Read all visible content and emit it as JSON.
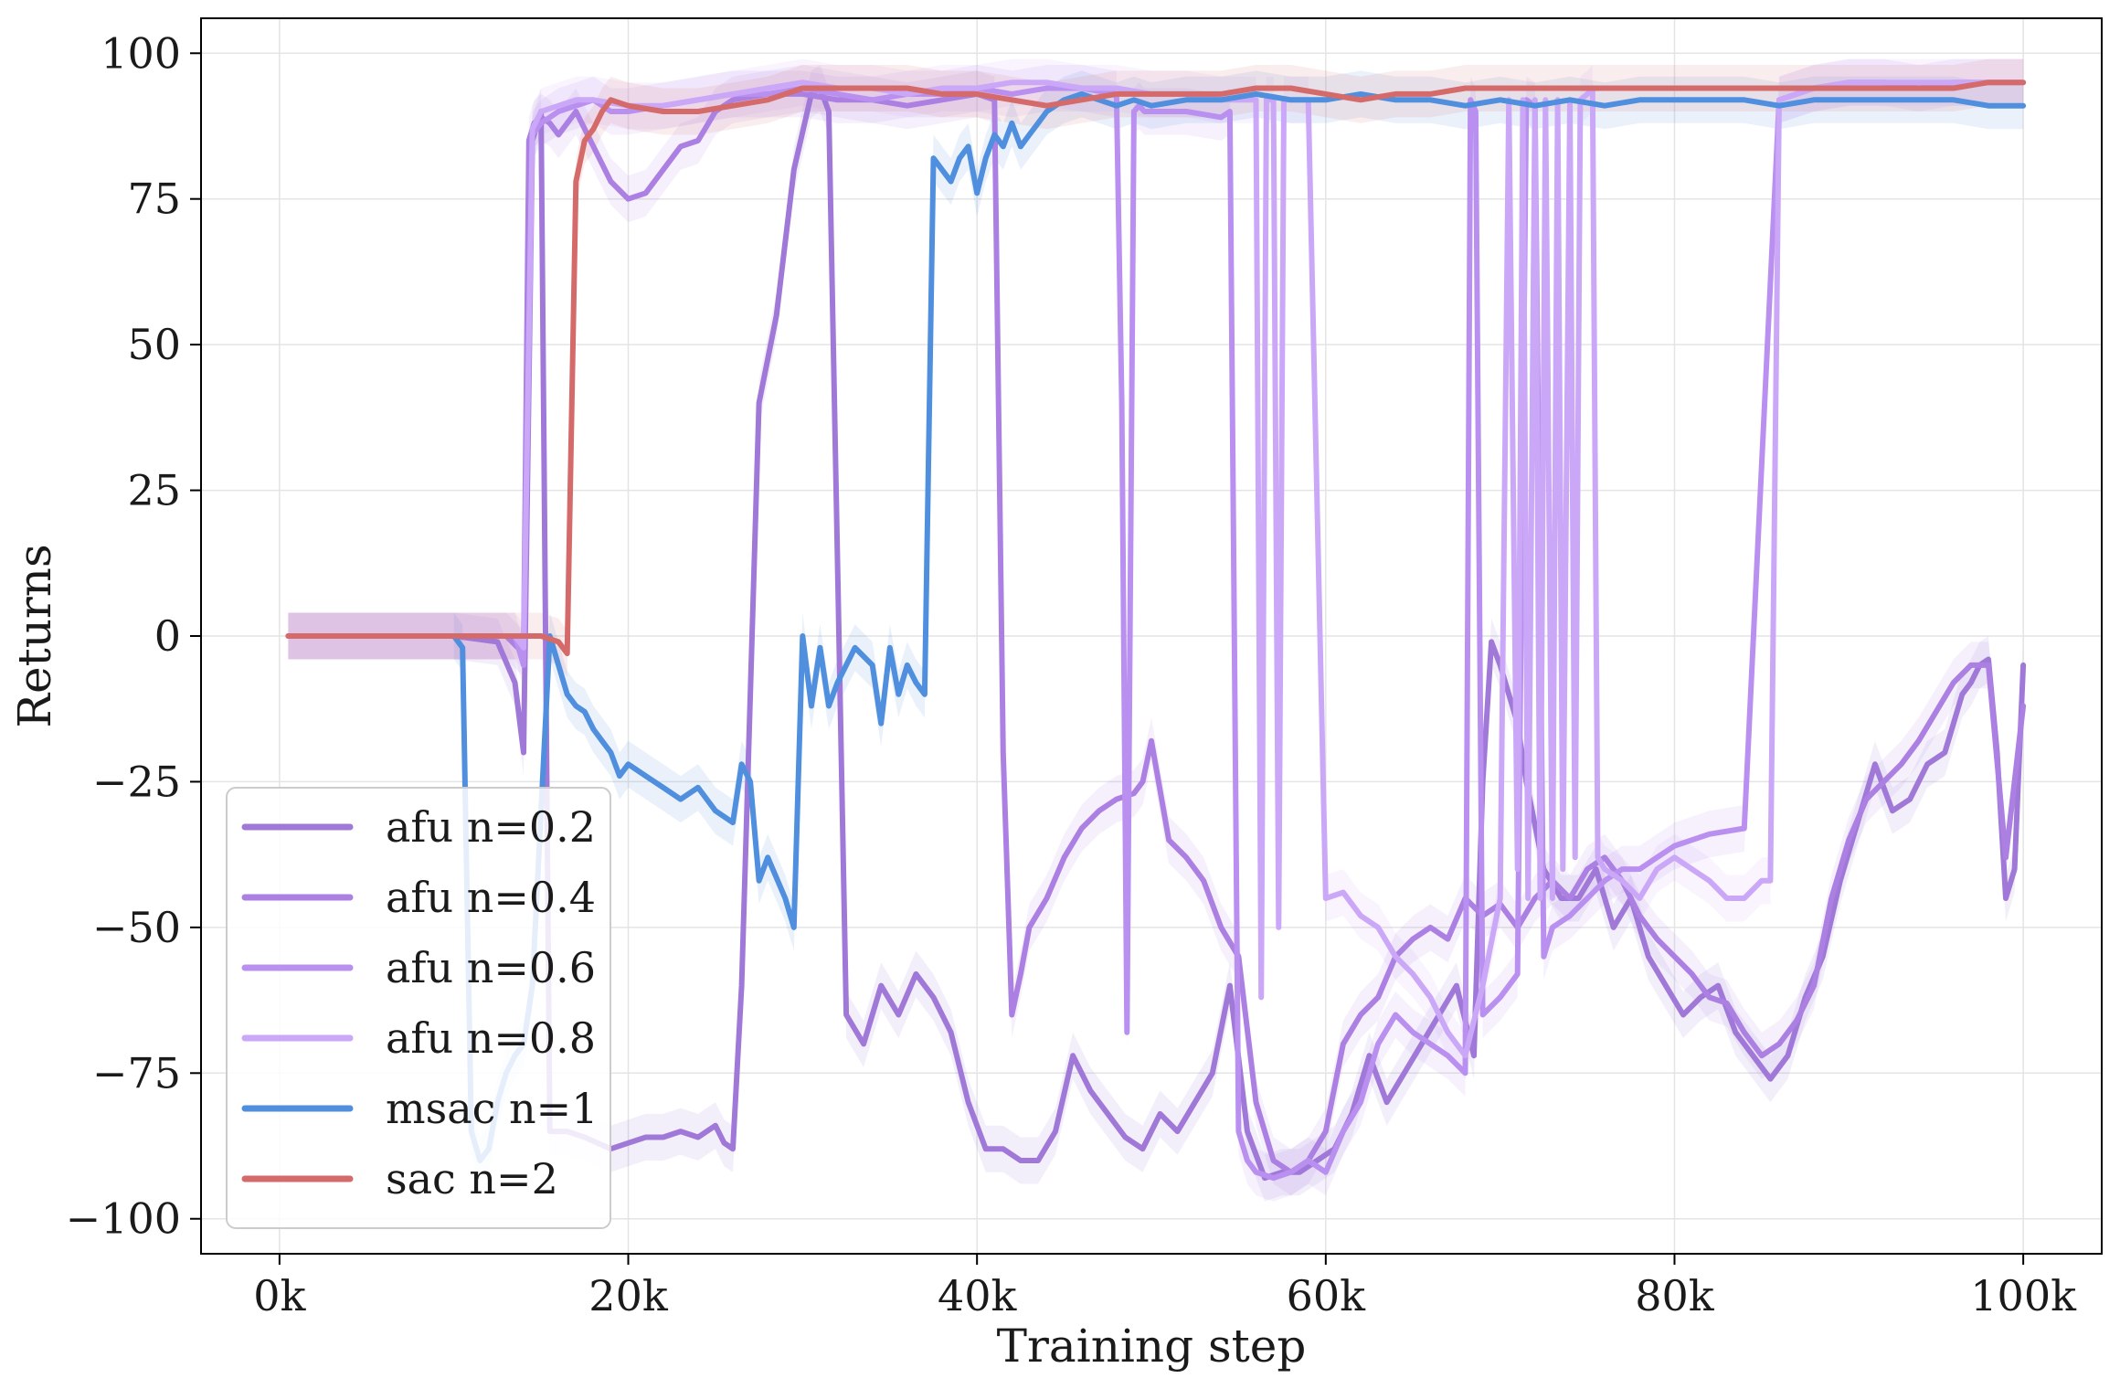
{
  "chart_data": {
    "type": "line",
    "title": "",
    "xlabel": "Training step",
    "ylabel": "Returns",
    "xlim": [
      -4500,
      104500
    ],
    "ylim": [
      -106,
      106
    ],
    "xticks": [
      {
        "value": 0,
        "label": "0k"
      },
      {
        "value": 20000,
        "label": "20k"
      },
      {
        "value": 40000,
        "label": "40k"
      },
      {
        "value": 60000,
        "label": "60k"
      },
      {
        "value": 80000,
        "label": "80k"
      },
      {
        "value": 100000,
        "label": "100k"
      }
    ],
    "yticks": [
      {
        "value": 100,
        "label": "100"
      },
      {
        "value": 75,
        "label": "75"
      },
      {
        "value": 50,
        "label": "50"
      },
      {
        "value": 25,
        "label": "25"
      },
      {
        "value": 0,
        "label": "0"
      },
      {
        "value": -25,
        "label": "−25"
      },
      {
        "value": -50,
        "label": "−50"
      },
      {
        "value": -75,
        "label": "−75"
      },
      {
        "value": -100,
        "label": "−100"
      }
    ],
    "grid": true,
    "legend_position": "lower-left",
    "series": [
      {
        "name": "afu n=0.2",
        "color": "#a078d8",
        "x": [
          500,
          10000,
          12500,
          13500,
          14000,
          14500,
          15000,
          15500,
          16500,
          17500,
          19000,
          20000,
          21000,
          22000,
          23000,
          24000,
          25000,
          25500,
          26000,
          26500,
          27500,
          28500,
          29500,
          30500,
          31000,
          31500,
          32500,
          33500,
          34500,
          35500,
          36500,
          37500,
          38500,
          39500,
          40500,
          41500,
          42500,
          43500,
          44500,
          45500,
          46500,
          47500,
          48500,
          49500,
          50500,
          51500,
          52500,
          53500,
          54500,
          55500,
          56500,
          57500,
          58500,
          59500,
          60500,
          61500,
          62500,
          63500,
          64500,
          65500,
          66500,
          67500,
          68500,
          69000,
          69500,
          70000,
          70500,
          71000,
          71500,
          72500,
          73500,
          74500,
          75500,
          76500,
          77500,
          78500,
          79500,
          80500,
          81500,
          82500,
          83500,
          84500,
          85500,
          86500,
          87500,
          88500,
          89500,
          90500,
          91500,
          92500,
          93500,
          94500,
          95500,
          96500,
          97000,
          97500,
          98000,
          98500,
          99000,
          99500,
          100000
        ],
        "y": [
          0,
          0,
          -1,
          -8,
          -20,
          85,
          90,
          -85,
          -85,
          -86,
          -88,
          -87,
          -86,
          -86,
          -85,
          -86,
          -84,
          -87,
          -88,
          -60,
          40,
          55,
          80,
          93,
          94,
          90,
          -65,
          -70,
          -60,
          -65,
          -58,
          -62,
          -68,
          -80,
          -88,
          -88,
          -90,
          -90,
          -85,
          -72,
          -78,
          -82,
          -86,
          -88,
          -82,
          -85,
          -80,
          -75,
          -60,
          -85,
          -93,
          -92,
          -92,
          -90,
          -88,
          -82,
          -72,
          -80,
          -75,
          -70,
          -65,
          -60,
          -72,
          -25,
          -1,
          -5,
          -10,
          -15,
          -25,
          -40,
          -45,
          -45,
          -40,
          -50,
          -45,
          -55,
          -60,
          -65,
          -62,
          -60,
          -68,
          -72,
          -76,
          -72,
          -62,
          -55,
          -42,
          -32,
          -22,
          -30,
          -28,
          -22,
          -20,
          -10,
          -8,
          -5,
          -4,
          -20,
          -45,
          -40,
          -5
        ]
      },
      {
        "name": "afu n=0.4",
        "color": "#ab80e2",
        "x": [
          500,
          10500,
          13000,
          14000,
          14300,
          14600,
          15000,
          15500,
          16000,
          16500,
          17000,
          18000,
          19000,
          20000,
          21000,
          22000,
          23000,
          24000,
          25000,
          26000,
          28000,
          30000,
          32000,
          34000,
          36000,
          38000,
          40000,
          41000,
          41500,
          42000,
          42500,
          43000,
          44000,
          45000,
          46000,
          47000,
          48000,
          49000,
          49500,
          50000,
          51000,
          52000,
          53000,
          54000,
          55000,
          56000,
          57000,
          58000,
          59000,
          60000,
          61000,
          62000,
          63000,
          64000,
          65000,
          66000,
          67000,
          68000,
          69000,
          70000,
          71000,
          72000,
          73000,
          74000,
          75000,
          76000,
          77000,
          78000,
          79000,
          80000,
          81000,
          82000,
          83000,
          84000,
          85000,
          86000,
          87000,
          88000,
          89000,
          90000,
          91000,
          92000,
          93000,
          94000,
          95000,
          96000,
          97000,
          98000,
          99000,
          100000
        ],
        "y": [
          0,
          0,
          0,
          -3,
          85,
          88,
          89,
          88,
          86,
          88,
          90,
          84,
          78,
          75,
          76,
          80,
          84,
          85,
          90,
          92,
          93,
          93,
          92,
          92,
          91,
          92,
          93,
          92,
          -20,
          -65,
          -58,
          -50,
          -45,
          -38,
          -33,
          -30,
          -28,
          -27,
          -25,
          -18,
          -35,
          -38,
          -42,
          -50,
          -55,
          -80,
          -90,
          -92,
          -90,
          -85,
          -70,
          -65,
          -62,
          -55,
          -52,
          -50,
          -52,
          -45,
          -48,
          -46,
          -50,
          -45,
          -42,
          -45,
          -40,
          -38,
          -42,
          -48,
          -52,
          -55,
          -58,
          -62,
          -63,
          -68,
          -72,
          -70,
          -66,
          -60,
          -45,
          -35,
          -28,
          -25,
          -22,
          -18,
          -13,
          -8,
          -5,
          -5,
          -38,
          -12
        ]
      },
      {
        "name": "afu n=0.6",
        "color": "#b98ff0",
        "x": [
          500,
          11000,
          13500,
          14000,
          14500,
          15000,
          16000,
          17000,
          18000,
          19000,
          20000,
          22000,
          24000,
          26000,
          28000,
          30000,
          32000,
          34000,
          36000,
          38000,
          40000,
          42000,
          44000,
          46000,
          48000,
          48300,
          48600,
          49000,
          49300,
          49600,
          50000,
          52000,
          54000,
          54500,
          55000,
          55500,
          56000,
          57000,
          58000,
          59000,
          60000,
          61000,
          62000,
          63000,
          64000,
          65000,
          66000,
          67000,
          68000,
          68300,
          68600,
          69000,
          70000,
          71000,
          71500,
          72000,
          72500,
          73000,
          74000,
          75000,
          76000,
          77000,
          78000,
          79000,
          80000,
          82000,
          84000,
          86000,
          88000,
          90000,
          92000,
          94000,
          96000,
          98000,
          100000
        ],
        "y": [
          0,
          0,
          0,
          -5,
          86,
          88,
          90,
          91,
          92,
          90,
          90,
          91,
          92,
          93,
          93,
          94,
          93,
          92,
          93,
          93,
          94,
          93,
          94,
          94,
          93,
          40,
          -68,
          90,
          91,
          90,
          90,
          90,
          89,
          90,
          -85,
          -90,
          -92,
          -93,
          -92,
          -90,
          -92,
          -85,
          -80,
          -70,
          -65,
          -68,
          -70,
          -72,
          -75,
          92,
          90,
          -65,
          -62,
          -58,
          92,
          91,
          -55,
          -50,
          -48,
          -45,
          -42,
          -40,
          -40,
          -38,
          -36,
          -34,
          -33,
          92,
          94,
          95,
          95,
          94,
          95,
          95,
          95
        ]
      },
      {
        "name": "afu n=0.8",
        "color": "#cba7f7",
        "x": [
          500,
          11000,
          13500,
          14000,
          14500,
          15000,
          16000,
          17000,
          18000,
          20000,
          22000,
          24000,
          26000,
          28000,
          30000,
          32000,
          34000,
          36000,
          38000,
          40000,
          42000,
          44000,
          46000,
          48000,
          50000,
          52000,
          54000,
          55000,
          55500,
          56000,
          56300,
          56600,
          57000,
          57300,
          57600,
          58000,
          59000,
          60000,
          61000,
          62000,
          63000,
          64000,
          65000,
          66000,
          67000,
          68000,
          69000,
          70000,
          70500,
          71000,
          71300,
          71600,
          72000,
          72300,
          72600,
          73000,
          73300,
          73600,
          74000,
          74300,
          74600,
          75000,
          75300,
          75600,
          76000,
          77000,
          78000,
          79000,
          80000,
          81000,
          82000,
          83000,
          84000,
          85000,
          85500,
          86000,
          88000,
          90000,
          92000,
          94000,
          96000,
          98000,
          100000
        ],
        "y": [
          0,
          0,
          0,
          -2,
          87,
          90,
          91,
          92,
          92,
          91,
          91,
          92,
          93,
          94,
          95,
          94,
          94,
          93,
          94,
          94,
          95,
          95,
          94,
          94,
          93,
          93,
          92,
          92,
          92,
          92,
          -62,
          92,
          92,
          -50,
          92,
          92,
          92,
          -45,
          -44,
          -48,
          -50,
          -55,
          -58,
          -62,
          -68,
          -72,
          -60,
          -45,
          92,
          -40,
          92,
          -45,
          92,
          -45,
          92,
          -45,
          92,
          -40,
          92,
          -38,
          92,
          93,
          94,
          -38,
          -40,
          -42,
          -45,
          -40,
          -38,
          -40,
          -42,
          -45,
          -45,
          -42,
          -42,
          92,
          94,
          95,
          95,
          95,
          95,
          95,
          95
        ]
      },
      {
        "name": "msac n=1",
        "color": "#4f8fde",
        "x": [
          10000,
          10500,
          11000,
          11500,
          12000,
          12500,
          13000,
          13500,
          14000,
          14500,
          15000,
          15500,
          16000,
          16500,
          17000,
          17500,
          18000,
          18500,
          19000,
          19500,
          20000,
          21000,
          22000,
          23000,
          24000,
          25000,
          26000,
          26500,
          27000,
          27500,
          28000,
          29000,
          29500,
          30000,
          30500,
          31000,
          31500,
          32000,
          33000,
          34000,
          34500,
          35000,
          35500,
          36000,
          36500,
          37000,
          37500,
          38000,
          38500,
          39000,
          39500,
          40000,
          40500,
          41000,
          41500,
          42000,
          42500,
          43000,
          43500,
          44000,
          45000,
          46000,
          47000,
          48000,
          49000,
          50000,
          52000,
          54000,
          56000,
          58000,
          60000,
          62000,
          64000,
          66000,
          68000,
          70000,
          72000,
          74000,
          76000,
          78000,
          80000,
          82000,
          84000,
          86000,
          88000,
          90000,
          92000,
          94000,
          96000,
          98000,
          100000
        ],
        "y": [
          0,
          -2,
          -85,
          -90,
          -88,
          -80,
          -75,
          -72,
          -70,
          -60,
          -30,
          0,
          -5,
          -10,
          -12,
          -13,
          -16,
          -18,
          -20,
          -24,
          -22,
          -24,
          -26,
          -28,
          -26,
          -30,
          -32,
          -22,
          -25,
          -42,
          -38,
          -45,
          -50,
          0,
          -12,
          -2,
          -12,
          -8,
          -2,
          -5,
          -15,
          -2,
          -10,
          -5,
          -8,
          -10,
          82,
          80,
          78,
          82,
          84,
          76,
          82,
          86,
          84,
          88,
          84,
          86,
          88,
          90,
          92,
          93,
          92,
          91,
          92,
          91,
          92,
          92,
          93,
          92,
          92,
          93,
          92,
          92,
          91,
          92,
          91,
          92,
          91,
          92,
          92,
          92,
          92,
          91,
          92,
          92,
          92,
          92,
          92,
          91,
          91
        ]
      },
      {
        "name": "sac n=2",
        "color": "#d46a6a",
        "x": [
          500,
          10000,
          15000,
          16000,
          16500,
          17000,
          17500,
          18000,
          18500,
          19000,
          20000,
          22000,
          24000,
          26000,
          28000,
          29000,
          30000,
          32000,
          34000,
          36000,
          38000,
          40000,
          42000,
          44000,
          46000,
          48000,
          50000,
          52000,
          54000,
          56000,
          58000,
          60000,
          62000,
          64000,
          66000,
          68000,
          70000,
          72000,
          74000,
          76000,
          78000,
          80000,
          82000,
          84000,
          86000,
          88000,
          90000,
          92000,
          94000,
          96000,
          98000,
          100000
        ],
        "y": [
          0,
          0,
          0,
          -1,
          -3,
          78,
          85,
          87,
          90,
          92,
          91,
          90,
          90,
          91,
          92,
          93,
          94,
          94,
          94,
          94,
          93,
          93,
          92,
          91,
          92,
          93,
          93,
          93,
          93,
          94,
          94,
          93,
          92,
          93,
          93,
          94,
          94,
          94,
          94,
          94,
          94,
          94,
          94,
          94,
          94,
          94,
          94,
          94,
          94,
          94,
          95,
          95
        ]
      }
    ]
  }
}
